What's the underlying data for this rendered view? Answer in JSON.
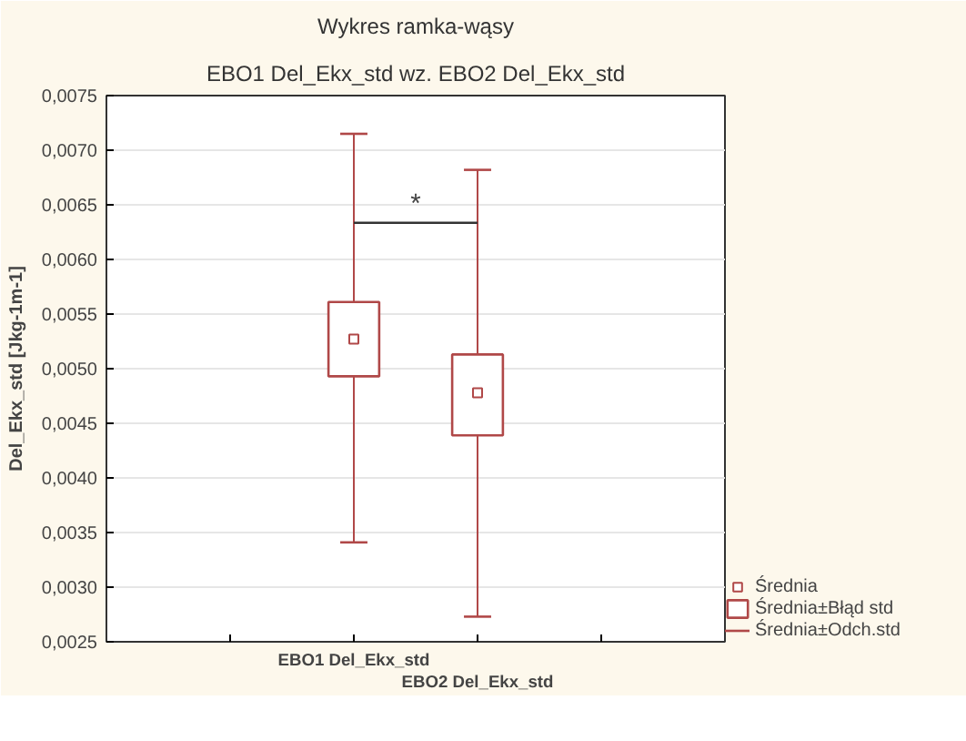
{
  "chart_data": {
    "type": "box",
    "title": "Wykres ramka-wąsy",
    "subtitle": "EBO1 Del_Ekx_std wz. EBO2 Del_Ekx_std",
    "ylabel": "Del_Ekx_std [Jkg-1m-1]",
    "categories": [
      "EBO1 Del_Ekx_std",
      "EBO2 Del_Ekx_std"
    ],
    "series": [
      {
        "name": "Średnia",
        "type": "scatter",
        "marker": "square",
        "color": "#b04848",
        "values": [
          0.00527,
          0.00478
        ],
        "errors": [
          [
            0.00341,
            0.00715
          ],
          [
            0.00273,
            0.00682
          ]
        ]
      },
      {
        "name": "Średnia±Błąd std",
        "type": "bar",
        "color": "#b04848",
        "base": [
          0.00493,
          0.00439
        ],
        "values": [
          0.00068,
          0.00074
        ]
      }
    ],
    "ylim": [
      0.0025,
      0.0075
    ],
    "yticks": [
      {
        "value": 0.0025,
        "label": "0,0025"
      },
      {
        "value": 0.003,
        "label": "0,0030"
      },
      {
        "value": 0.0035,
        "label": "0,0035"
      },
      {
        "value": 0.004,
        "label": "0,0040"
      },
      {
        "value": 0.0045,
        "label": "0,0045"
      },
      {
        "value": 0.005,
        "label": "0,0050"
      },
      {
        "value": 0.0055,
        "label": "0,0055"
      },
      {
        "value": 0.006,
        "label": "0,0060"
      },
      {
        "value": 0.0065,
        "label": "0,0065"
      },
      {
        "value": 0.007,
        "label": "0,0070"
      },
      {
        "value": 0.0075,
        "label": "0,0075"
      }
    ],
    "grid": "y",
    "legend": "bottom right",
    "annotations": [
      "*",
      "Średnia±Odch.std"
    ]
  }
}
